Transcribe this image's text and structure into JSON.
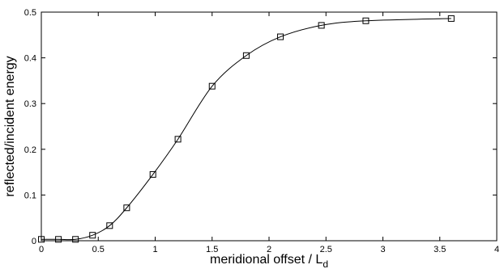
{
  "chart_data": {
    "type": "line",
    "title": "",
    "xlabel": "meridional offset / L",
    "xlabel_subscript": "d",
    "ylabel": "reflected/incident energy",
    "xlim": [
      0,
      4
    ],
    "ylim": [
      0,
      0.5
    ],
    "xticks": [
      "0",
      "0.5",
      "1",
      "1.5",
      "2",
      "2.5",
      "3",
      "3.5",
      "4"
    ],
    "yticks": [
      "0",
      "0.1",
      "0.2",
      "0.3",
      "0.4",
      "0.5"
    ],
    "grid": false,
    "legend": "none",
    "line_color": "#000000",
    "marker": "open-square",
    "series": [
      {
        "x": [
          0.0,
          0.15,
          0.3,
          0.45,
          0.6,
          0.75,
          0.98,
          1.2,
          1.5,
          1.8,
          2.1,
          2.46,
          2.85,
          3.6
        ],
        "y": [
          0.003,
          0.003,
          0.003,
          0.012,
          0.033,
          0.072,
          0.145,
          0.222,
          0.338,
          0.405,
          0.446,
          0.471,
          0.481,
          0.486
        ]
      }
    ]
  }
}
